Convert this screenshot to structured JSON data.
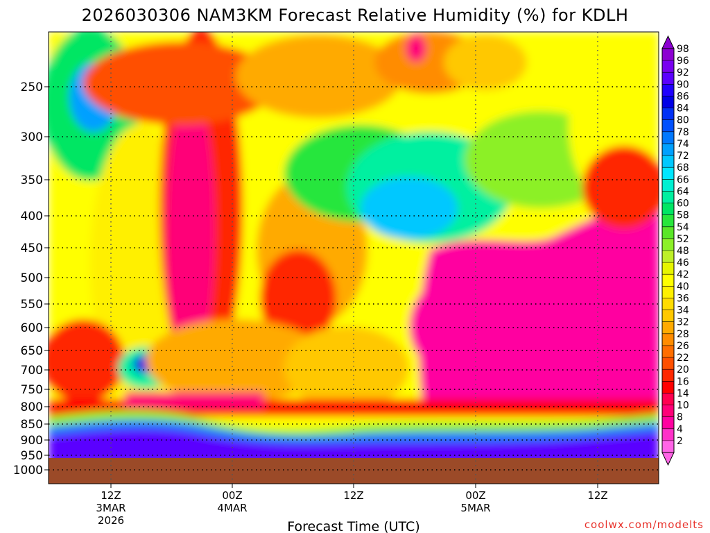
{
  "chart_data": {
    "type": "heatmap",
    "title": "2026030306 NAM3KM Forecast Relative Humidity (%) for KDLH",
    "xlabel": "Forecast Time (UTC)",
    "ylabel": "",
    "y_scale": "log-pressure",
    "y_ticks": [
      "250",
      "300",
      "350",
      "400",
      "450",
      "500",
      "550",
      "600",
      "650",
      "700",
      "750",
      "800",
      "850",
      "900",
      "950",
      "1000"
    ],
    "x_ticks": [
      {
        "lines": [
          "12Z",
          "3MAR",
          "2026"
        ]
      },
      {
        "lines": [
          "00Z",
          "4MAR"
        ]
      },
      {
        "lines": [
          "12Z"
        ]
      },
      {
        "lines": [
          "00Z",
          "5MAR"
        ]
      },
      {
        "lines": [
          "12Z"
        ]
      }
    ],
    "x_range_hours": [
      3,
      63
    ],
    "y_range_hpa": [
      200,
      1050
    ],
    "grid": true,
    "ground_level_hpa": 965,
    "colorbar": {
      "levels": [
        "98",
        "96",
        "92",
        "90",
        "86",
        "84",
        "80",
        "78",
        "74",
        "72",
        "68",
        "66",
        "64",
        "60",
        "58",
        "54",
        "52",
        "48",
        "46",
        "42",
        "40",
        "36",
        "34",
        "32",
        "28",
        "26",
        "22",
        "20",
        "16",
        "14",
        "10",
        "8",
        "4",
        "2"
      ],
      "colors": [
        "#8c00d2",
        "#7800f0",
        "#5a00ff",
        "#1f00ff",
        "#0000e6",
        "#0030f5",
        "#0050ff",
        "#0078ff",
        "#00a0ff",
        "#00c8ff",
        "#00e6ff",
        "#00f0d2",
        "#00f0a0",
        "#00e664",
        "#28e63c",
        "#5ae628",
        "#8cf028",
        "#bef028",
        "#e6f500",
        "#ffff00",
        "#fff000",
        "#ffdc00",
        "#ffc800",
        "#ffaa00",
        "#ff8c00",
        "#ff6e00",
        "#ff5000",
        "#ff2800",
        "#ff0000",
        "#ff0050",
        "#ff0078",
        "#ff00a0",
        "#ff32c8",
        "#ff64e6"
      ]
    },
    "regions": [
      {
        "desc": "upper-left moist",
        "x": [
          3,
          8
        ],
        "y": [
          220,
          350
        ],
        "rh": 66
      },
      {
        "desc": "upper dry band",
        "x": [
          8,
          30
        ],
        "y": [
          200,
          330
        ],
        "rh": 26
      },
      {
        "desc": "upper middle moist",
        "x": [
          32,
          52
        ],
        "y": [
          280,
          480
        ],
        "rh": 64
      },
      {
        "desc": "mid-right very dry",
        "x": [
          39,
          63
        ],
        "y": [
          420,
          800
        ],
        "rh": 6
      },
      {
        "desc": "low-level moist layer",
        "x": [
          3,
          63
        ],
        "y": [
          860,
          965
        ],
        "rh": 94
      }
    ],
    "ground_color": "#9b4a28"
  },
  "footer": {
    "credit": "coolwx.com/modelts"
  }
}
